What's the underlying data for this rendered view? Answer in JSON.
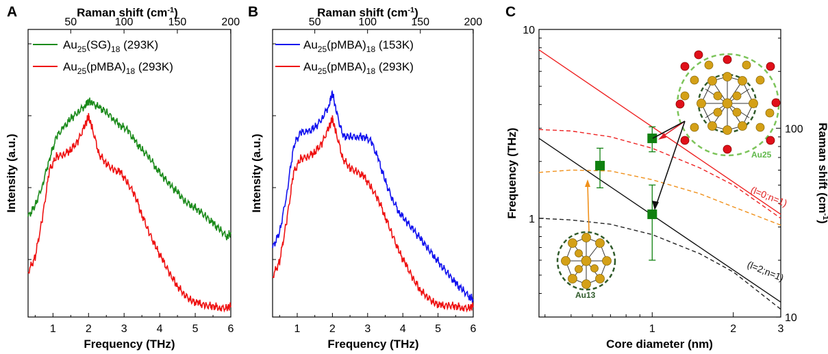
{
  "panels": {
    "A": {
      "letter": "A",
      "top_axis_title": "Raman shift (cm",
      "top_axis_sup": "-1",
      "top_axis_close": ")",
      "bottom_axis_title": "Frequency (THz)",
      "y_axis_title": "Intensity (a.u.)",
      "legend": [
        {
          "prefix": "Au",
          "sub1": "25",
          "mid": "(SG)",
          "sub2": "18",
          "suffix": " (293K)",
          "color": "#1a8a1a"
        },
        {
          "prefix": "Au",
          "sub1": "25",
          "mid": "(pMBA)",
          "sub2": "18",
          "suffix": " (293K)",
          "color": "#ee1111"
        }
      ]
    },
    "B": {
      "letter": "B",
      "top_axis_title": "Raman shift (cm",
      "top_axis_sup": "-1",
      "top_axis_close": ")",
      "bottom_axis_title": "Frequency (THz)",
      "y_axis_title": "Intensity (a.u.)",
      "legend": [
        {
          "prefix": "Au",
          "sub1": "25",
          "mid": "(pMBA)",
          "sub2": "18",
          "suffix": " (153K)",
          "color": "#1111ee"
        },
        {
          "prefix": "Au",
          "sub1": "25",
          "mid": "(pMBA)",
          "sub2": "18",
          "suffix": " (293K)",
          "color": "#ee1111"
        }
      ]
    },
    "C": {
      "letter": "C",
      "x_axis_title": "Core diameter (nm)",
      "y_axis_title": "Frequency (THz)",
      "y2_axis_title": "Raman shift (cm",
      "y2_axis_sup": "-1",
      "y2_axis_close": ")",
      "mode_label_1": "(l=0;n=1)",
      "mode_label_2": "(l=2;n=1)",
      "cluster_label_big": "Au25",
      "cluster_label_small": "Au13"
    }
  },
  "chart_data": [
    {
      "type": "line",
      "panel": "A",
      "xlabel": "Frequency (THz)",
      "x2label": "Raman shift (cm-1)",
      "ylabel": "Intensity (a.u.)",
      "xlim": [
        0.3,
        6
      ],
      "x_ticks": [
        1,
        2,
        3,
        4,
        5,
        6
      ],
      "x2_ticks": [
        50,
        100,
        150,
        200
      ],
      "y_ticks_shown": false,
      "series": [
        {
          "name": "Au25(SG)18 (293K)",
          "color": "#1a8a1a",
          "x": [
            0.3,
            0.5,
            0.7,
            0.9,
            1.1,
            1.3,
            1.5,
            1.7,
            1.9,
            2.0,
            2.1,
            2.3,
            2.5,
            2.7,
            2.9,
            3.1,
            3.3,
            3.5,
            3.7,
            3.9,
            4.1,
            4.3,
            4.5,
            4.7,
            4.9,
            5.1,
            5.3,
            5.5,
            5.7,
            5.9,
            6.0
          ],
          "y": [
            0.42,
            0.47,
            0.56,
            0.68,
            0.78,
            0.82,
            0.86,
            0.89,
            0.92,
            0.94,
            0.93,
            0.91,
            0.89,
            0.86,
            0.83,
            0.81,
            0.76,
            0.72,
            0.69,
            0.64,
            0.6,
            0.56,
            0.53,
            0.49,
            0.47,
            0.45,
            0.42,
            0.39,
            0.36,
            0.33,
            0.35
          ]
        },
        {
          "name": "Au25(pMBA)18 (293K)",
          "color": "#ee1111",
          "x": [
            0.3,
            0.5,
            0.7,
            0.9,
            1.1,
            1.3,
            1.5,
            1.7,
            1.9,
            2.0,
            2.1,
            2.3,
            2.5,
            2.7,
            2.9,
            3.1,
            3.3,
            3.5,
            3.7,
            3.9,
            4.1,
            4.3,
            4.5,
            4.7,
            4.9,
            5.1,
            5.3,
            5.5,
            5.7,
            5.9,
            6.0
          ],
          "y": [
            0.17,
            0.24,
            0.41,
            0.63,
            0.69,
            0.7,
            0.72,
            0.76,
            0.83,
            0.87,
            0.82,
            0.7,
            0.66,
            0.63,
            0.62,
            0.57,
            0.52,
            0.43,
            0.35,
            0.28,
            0.22,
            0.16,
            0.11,
            0.07,
            0.04,
            0.03,
            0.02,
            0.02,
            0.01,
            0.01,
            0.02
          ]
        }
      ]
    },
    {
      "type": "line",
      "panel": "B",
      "xlabel": "Frequency (THz)",
      "x2label": "Raman shift (cm-1)",
      "ylabel": "Intensity (a.u.)",
      "xlim": [
        0.3,
        6
      ],
      "x_ticks": [
        1,
        2,
        3,
        4,
        5,
        6
      ],
      "x2_ticks": [
        50,
        100,
        150,
        200
      ],
      "y_ticks_shown": false,
      "series": [
        {
          "name": "Au25(pMBA)18 (153K)",
          "color": "#1111ee",
          "x": [
            0.3,
            0.5,
            0.7,
            0.9,
            1.1,
            1.3,
            1.5,
            1.7,
            1.9,
            2.0,
            2.1,
            2.3,
            2.5,
            2.7,
            2.9,
            3.1,
            3.3,
            3.5,
            3.7,
            3.9,
            4.1,
            4.3,
            4.5,
            4.7,
            4.9,
            5.1,
            5.3,
            5.5,
            5.7,
            5.9,
            6.0
          ],
          "y": [
            0.28,
            0.35,
            0.52,
            0.74,
            0.8,
            0.8,
            0.82,
            0.86,
            0.92,
            0.98,
            0.9,
            0.78,
            0.78,
            0.78,
            0.78,
            0.76,
            0.68,
            0.58,
            0.5,
            0.44,
            0.4,
            0.36,
            0.32,
            0.28,
            0.24,
            0.2,
            0.16,
            0.12,
            0.09,
            0.06,
            0.05
          ]
        },
        {
          "name": "Au25(pMBA)18 (293K)",
          "color": "#ee1111",
          "x": [
            0.3,
            0.5,
            0.7,
            0.9,
            1.1,
            1.3,
            1.5,
            1.7,
            1.9,
            2.0,
            2.1,
            2.3,
            2.5,
            2.7,
            2.9,
            3.1,
            3.3,
            3.5,
            3.7,
            3.9,
            4.1,
            4.3,
            4.5,
            4.7,
            4.9,
            5.1,
            5.3,
            5.5,
            5.7,
            5.9,
            6.0
          ],
          "y": [
            0.15,
            0.22,
            0.4,
            0.62,
            0.68,
            0.69,
            0.71,
            0.75,
            0.82,
            0.86,
            0.8,
            0.68,
            0.64,
            0.62,
            0.6,
            0.55,
            0.5,
            0.42,
            0.34,
            0.26,
            0.2,
            0.14,
            0.09,
            0.06,
            0.03,
            0.02,
            0.02,
            0.02,
            0.01,
            0.01,
            0.02
          ]
        }
      ]
    },
    {
      "type": "scatter",
      "panel": "C",
      "xlabel": "Core diameter (nm)",
      "ylabel": "Frequency (THz)",
      "y2label": "Raman shift (cm-1)",
      "xscale": "log",
      "yscale": "log",
      "xlim": [
        0.38,
        3
      ],
      "ylim": [
        0.3,
        10
      ],
      "x_ticks": [
        1,
        2,
        3
      ],
      "y_ticks": [
        1,
        10
      ],
      "y2_ticks": [
        10,
        100
      ],
      "points": [
        {
          "x": 0.64,
          "y": 1.9,
          "yerr_low": 1.45,
          "yerr_high": 2.35,
          "color": "#0f800f"
        },
        {
          "x": 1.0,
          "y": 2.65,
          "yerr_low": 2.25,
          "yerr_high": 3.05,
          "color": "#0f800f"
        },
        {
          "x": 1.0,
          "y": 1.05,
          "yerr_low": 0.6,
          "yerr_high": 1.5,
          "color": "#0f800f"
        }
      ],
      "lines": [
        {
          "style": "solid",
          "color": "#ee2222",
          "x": [
            0.38,
            3.0
          ],
          "y": [
            7.8,
            1.05
          ]
        },
        {
          "style": "solid",
          "color": "#111111",
          "x": [
            0.38,
            3.0
          ],
          "y": [
            2.65,
            0.36
          ]
        },
        {
          "style": "dashed",
          "color": "#ee2222",
          "x": [
            0.38,
            0.5,
            0.7,
            1.0,
            1.5,
            2.0,
            3.0
          ],
          "y": [
            2.95,
            2.9,
            2.7,
            2.35,
            1.85,
            1.5,
            1.0
          ]
        },
        {
          "style": "dashed",
          "color": "#f0901a",
          "x": [
            0.38,
            0.5,
            0.7,
            1.0,
            1.5,
            2.0,
            3.0
          ],
          "y": [
            1.75,
            1.8,
            1.78,
            1.6,
            1.35,
            1.15,
            0.92
          ]
        },
        {
          "style": "dashed",
          "color": "#222222",
          "x": [
            0.38,
            0.5,
            0.7,
            1.0,
            1.5,
            2.0,
            3.0
          ],
          "y": [
            1.0,
            0.98,
            0.93,
            0.82,
            0.65,
            0.52,
            0.33
          ]
        }
      ]
    }
  ]
}
